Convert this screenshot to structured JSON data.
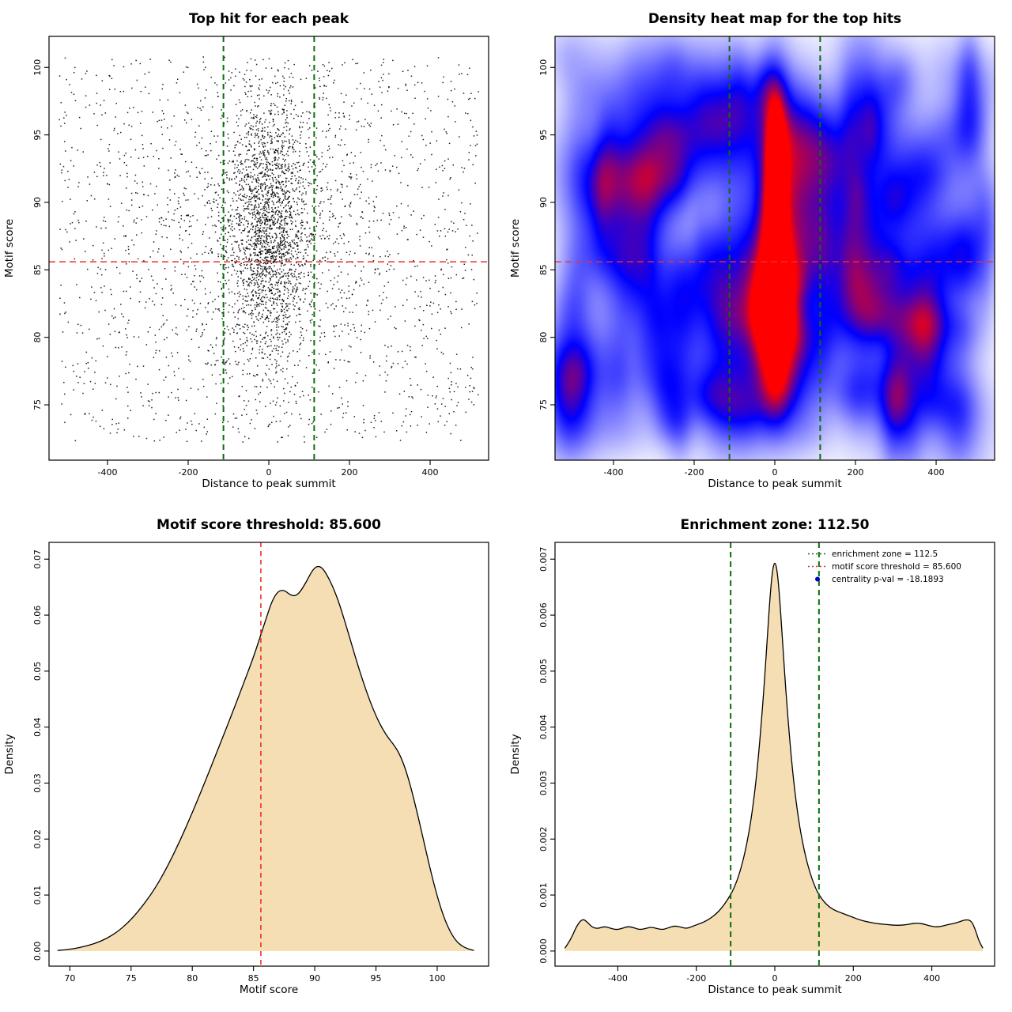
{
  "page": {
    "background": "#ffffff",
    "text_color": "#000000"
  },
  "chart_data": [
    {
      "id": "top-hit-scatter",
      "type": "scatter",
      "title": "Top hit for each peak",
      "xlabel": "Distance to peak summit",
      "ylabel": "Motif score",
      "xlim": [
        -545,
        545
      ],
      "ylim": [
        70.9,
        102.3
      ],
      "xtick_vals": [
        -400,
        -200,
        0,
        200,
        400
      ],
      "xtick_labels": [
        "-400",
        "-200",
        "0",
        "200",
        "400"
      ],
      "ytick_vals": [
        75,
        80,
        85,
        90,
        95,
        100
      ],
      "ytick_labels": [
        "75",
        "80",
        "85",
        "90",
        "95",
        "100"
      ],
      "point_color": "#000000",
      "marker_size": 1.5,
      "vlines": [
        -112.5,
        112.5
      ],
      "vline_color": "#0b6e0b",
      "vline_width": 2,
      "vline_dash": [
        7,
        5
      ],
      "hlines": [
        85.6
      ],
      "hline_color": "#ee3030",
      "hline_width": 1.5,
      "hline_dash": [
        8,
        5
      ],
      "scatter_model": {
        "seed": 20240601,
        "background_n": 1700,
        "background_x_range": [
          -520,
          520
        ],
        "background_y_range": [
          72.2,
          100.8
        ],
        "cluster_n": 2500,
        "cluster_x_sds": [
          45,
          95,
          165
        ],
        "cluster_x_weights": [
          0.6,
          0.25,
          0.15
        ],
        "cluster_x_range": [
          -520,
          520
        ],
        "cluster_y_mean": 88.0,
        "cluster_y_sd": 5.0,
        "cluster_y_range": [
          73,
          100.6
        ]
      }
    },
    {
      "id": "top-hit-density-heatmap",
      "type": "heatmap",
      "title": "Density heat map for the top hits",
      "xlabel": "Distance to peak summit",
      "ylabel": "Motif score",
      "xlim": [
        -545,
        545
      ],
      "ylim": [
        70.9,
        102.3
      ],
      "xtick_vals": [
        -400,
        -200,
        0,
        200,
        400
      ],
      "xtick_labels": [
        "-400",
        "-200",
        "0",
        "200",
        "400"
      ],
      "ytick_vals": [
        75,
        80,
        85,
        90,
        95,
        100
      ],
      "ytick_labels": [
        "75",
        "80",
        "85",
        "90",
        "95",
        "100"
      ],
      "palette": {
        "low": "#ffffff",
        "mid": "#0000ff",
        "high": "#ff0000"
      },
      "vlines": [
        -112.5,
        112.5
      ],
      "vline_color": "#0b6e0b",
      "vline_width": 2,
      "vline_dash": [
        7,
        5
      ],
      "hlines": [
        85.6
      ],
      "hline_color": "#ee3030",
      "hline_width": 1.3,
      "hline_dash": [
        8,
        5
      ],
      "kernels": [
        {
          "x": 0,
          "y": 90,
          "sx": 13,
          "sy": 3.0,
          "w": 1.7
        },
        {
          "x": 0,
          "y": 92.5,
          "sx": 12,
          "sy": 2.3,
          "w": 0.95
        },
        {
          "x": 0,
          "y": 87.3,
          "sx": 13,
          "sy": 2.6,
          "w": 0.95
        },
        {
          "x": 0,
          "y": 88.5,
          "sx": 30,
          "sy": 7.5,
          "w": 0.9
        },
        {
          "x": 0,
          "y": 96.3,
          "sx": 20,
          "sy": 2.3,
          "w": 0.6
        },
        {
          "x": 0,
          "y": 80.5,
          "sx": 27,
          "sy": 3.6,
          "w": 0.55
        },
        {
          "x": 0,
          "y": 75.8,
          "sx": 22,
          "sy": 2.0,
          "w": 0.35
        },
        {
          "x": -25,
          "y": 98.6,
          "sx": 30,
          "sy": 1.8,
          "w": 0.45
        },
        {
          "x": 0,
          "y": 84,
          "sx": 42,
          "sy": 3.2,
          "w": 0.5
        },
        {
          "x": 60,
          "y": 88,
          "sx": 60,
          "sy": 6,
          "w": 0.18
        },
        {
          "x": -60,
          "y": 88,
          "sx": 60,
          "sy": 6,
          "w": 0.18
        }
      ],
      "noise": {
        "seed": 99,
        "count": 300,
        "x_range": [
          -530,
          530
        ],
        "y_range": [
          72.5,
          101
        ],
        "sx_range": [
          18,
          60
        ],
        "sy_range": [
          1.2,
          3.6
        ],
        "w_range": [
          0.05,
          0.26
        ]
      }
    },
    {
      "id": "motif-score-density",
      "type": "density",
      "title": "Motif score threshold: 85.600",
      "xlabel": "Motif score",
      "ylabel": "Density",
      "xlim": [
        68.3,
        104.2
      ],
      "ylim": [
        -0.0027,
        0.073
      ],
      "xtick_vals": [
        70,
        75,
        80,
        85,
        90,
        95,
        100
      ],
      "xtick_labels": [
        "70",
        "75",
        "80",
        "85",
        "90",
        "95",
        "100"
      ],
      "ytick_vals": [
        0,
        0.01,
        0.02,
        0.03,
        0.04,
        0.05,
        0.06,
        0.07
      ],
      "ytick_labels": [
        "0.00",
        "0.01",
        "0.02",
        "0.03",
        "0.04",
        "0.05",
        "0.06",
        "0.07"
      ],
      "fill_color": "#f5deb3",
      "line_color": "#000000",
      "vlines": [
        85.6
      ],
      "vline_color": "#ee3030",
      "vline_width": 1.6,
      "vline_dash": [
        6,
        5
      ],
      "points": [
        [
          69.0,
          0.0001
        ],
        [
          70,
          0.0003
        ],
        [
          71,
          0.0007
        ],
        [
          72,
          0.0013
        ],
        [
          73,
          0.0022
        ],
        [
          74,
          0.0036
        ],
        [
          75,
          0.0056
        ],
        [
          76,
          0.0082
        ],
        [
          77,
          0.0113
        ],
        [
          78,
          0.0152
        ],
        [
          79,
          0.0197
        ],
        [
          80,
          0.0247
        ],
        [
          81,
          0.03
        ],
        [
          82,
          0.0355
        ],
        [
          83,
          0.041
        ],
        [
          84,
          0.0467
        ],
        [
          85,
          0.0525
        ],
        [
          85.6,
          0.0565
        ],
        [
          86,
          0.0592
        ],
        [
          86.5,
          0.0625
        ],
        [
          87,
          0.0643
        ],
        [
          87.5,
          0.0645
        ],
        [
          88,
          0.0636
        ],
        [
          88.4,
          0.0634
        ],
        [
          88.8,
          0.0641
        ],
        [
          89.3,
          0.0659
        ],
        [
          89.8,
          0.068
        ],
        [
          90.2,
          0.0688
        ],
        [
          90.6,
          0.0685
        ],
        [
          91,
          0.0672
        ],
        [
          91.5,
          0.065
        ],
        [
          92,
          0.0621
        ],
        [
          92.5,
          0.0586
        ],
        [
          93,
          0.0549
        ],
        [
          93.5,
          0.0512
        ],
        [
          94,
          0.0478
        ],
        [
          94.5,
          0.0447
        ],
        [
          95,
          0.042
        ],
        [
          95.5,
          0.0398
        ],
        [
          96,
          0.0381
        ],
        [
          96.4,
          0.037
        ],
        [
          96.8,
          0.0357
        ],
        [
          97.2,
          0.0338
        ],
        [
          97.6,
          0.0312
        ],
        [
          98,
          0.028
        ],
        [
          98.5,
          0.0235
        ],
        [
          99,
          0.0187
        ],
        [
          99.5,
          0.014
        ],
        [
          100,
          0.0098
        ],
        [
          100.5,
          0.0063
        ],
        [
          101,
          0.0037
        ],
        [
          101.5,
          0.0019
        ],
        [
          102,
          0.0009
        ],
        [
          102.5,
          0.0004
        ],
        [
          103,
          0.0001
        ]
      ]
    },
    {
      "id": "enrichment-zone-density",
      "type": "density",
      "title": "Enrichment zone: 112.50",
      "xlabel": "Distance to peak summit",
      "ylabel": "Density",
      "xlim": [
        -560,
        560
      ],
      "ylim": [
        -0.00027,
        0.0073
      ],
      "xtick_vals": [
        -400,
        -200,
        0,
        200,
        400
      ],
      "xtick_labels": [
        "-400",
        "-200",
        "0",
        "200",
        "400"
      ],
      "ytick_vals": [
        0,
        0.001,
        0.002,
        0.003,
        0.004,
        0.005,
        0.006,
        0.007
      ],
      "ytick_labels": [
        "0.000",
        "0.001",
        "0.002",
        "0.003",
        "0.004",
        "0.005",
        "0.006",
        "0.007"
      ],
      "fill_color": "#f5deb3",
      "line_color": "#000000",
      "vlines": [
        -112.5,
        112.5
      ],
      "vline_color": "#0b6e0b",
      "vline_width": 2,
      "vline_dash": [
        7,
        5
      ],
      "legend": {
        "items": [
          {
            "label": "enrichment zone = 112.5",
            "color": "#0b6e0b",
            "marker": "dotted-line"
          },
          {
            "label": "motif score threshold = 85.600",
            "color": "#ee3030",
            "marker": "dotted-line"
          },
          {
            "label": "centrality p-val = -18.1893",
            "color": "#0000cc",
            "marker": "dot"
          }
        ]
      },
      "points": [
        [
          -535,
          5e-05
        ],
        [
          -520,
          0.0002
        ],
        [
          -505,
          0.00045
        ],
        [
          -490,
          0.00058
        ],
        [
          -478,
          0.00052
        ],
        [
          -465,
          0.00042
        ],
        [
          -450,
          0.0004
        ],
        [
          -435,
          0.00044
        ],
        [
          -420,
          0.00041
        ],
        [
          -405,
          0.00038
        ],
        [
          -390,
          0.0004
        ],
        [
          -375,
          0.00044
        ],
        [
          -360,
          0.00042
        ],
        [
          -345,
          0.00038
        ],
        [
          -330,
          0.0004
        ],
        [
          -315,
          0.00043
        ],
        [
          -300,
          0.0004
        ],
        [
          -285,
          0.00038
        ],
        [
          -270,
          0.00042
        ],
        [
          -255,
          0.00045
        ],
        [
          -240,
          0.00043
        ],
        [
          -225,
          0.0004
        ],
        [
          -210,
          0.00044
        ],
        [
          -195,
          0.00048
        ],
        [
          -180,
          0.00052
        ],
        [
          -165,
          0.00058
        ],
        [
          -150,
          0.00066
        ],
        [
          -135,
          0.00077
        ],
        [
          -120,
          0.00092
        ],
        [
          -105,
          0.0011
        ],
        [
          -90,
          0.00138
        ],
        [
          -75,
          0.00178
        ],
        [
          -60,
          0.00235
        ],
        [
          -45,
          0.0032
        ],
        [
          -30,
          0.00445
        ],
        [
          -20,
          0.0055
        ],
        [
          -12,
          0.00635
        ],
        [
          -6,
          0.0068
        ],
        [
          0,
          0.00697
        ],
        [
          6,
          0.0068
        ],
        [
          12,
          0.00635
        ],
        [
          20,
          0.0055
        ],
        [
          30,
          0.00445
        ],
        [
          45,
          0.0032
        ],
        [
          60,
          0.00235
        ],
        [
          75,
          0.00178
        ],
        [
          90,
          0.00138
        ],
        [
          105,
          0.0011
        ],
        [
          115,
          0.00098
        ],
        [
          125,
          0.00088
        ],
        [
          140,
          0.00078
        ],
        [
          155,
          0.00072
        ],
        [
          170,
          0.00068
        ],
        [
          185,
          0.00064
        ],
        [
          200,
          0.0006
        ],
        [
          215,
          0.00056
        ],
        [
          230,
          0.00053
        ],
        [
          245,
          0.00051
        ],
        [
          260,
          0.00049
        ],
        [
          275,
          0.00048
        ],
        [
          290,
          0.00047
        ],
        [
          305,
          0.00046
        ],
        [
          320,
          0.00046
        ],
        [
          335,
          0.00047
        ],
        [
          350,
          0.00049
        ],
        [
          365,
          0.0005
        ],
        [
          380,
          0.00048
        ],
        [
          395,
          0.00045
        ],
        [
          410,
          0.00043
        ],
        [
          425,
          0.00044
        ],
        [
          440,
          0.00047
        ],
        [
          455,
          0.00049
        ],
        [
          470,
          0.00052
        ],
        [
          485,
          0.00056
        ],
        [
          500,
          0.00055
        ],
        [
          510,
          0.0004
        ],
        [
          520,
          0.00018
        ],
        [
          530,
          5e-05
        ]
      ]
    }
  ]
}
